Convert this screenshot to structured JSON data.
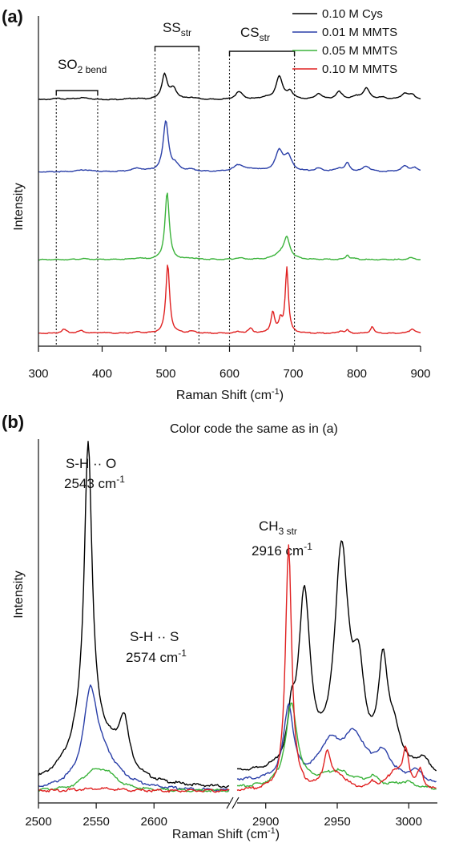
{
  "chart_data": [
    {
      "panel_label": "(a)",
      "type": "line",
      "xlabel": "Raman Shift (cm",
      "xlabel_sup": "-1",
      "xlabel_close": ")",
      "ylabel": "Intensity",
      "xlim": [
        300,
        900
      ],
      "xticks": [
        300,
        400,
        500,
        600,
        700,
        800,
        900
      ],
      "legend": "top-right",
      "grid": false,
      "annotations": [
        {
          "text": "SO",
          "sub": "2 bend",
          "x_range": [
            328,
            393
          ]
        },
        {
          "text": "SS",
          "sub": "str",
          "x_range": [
            483,
            552
          ]
        },
        {
          "text": "CS",
          "sub": "str",
          "x_range": [
            600,
            702
          ]
        }
      ],
      "series": [
        {
          "name": "0.10 M Cys",
          "color": "#000000",
          "offset": 3,
          "baseline": 0.07,
          "peaks": [
            [
              330,
              0.03,
              12
            ],
            [
              370,
              0.05,
              14
            ],
            [
              450,
              0.03,
              12
            ],
            [
              498,
              0.65,
              5
            ],
            [
              512,
              0.28,
              6
            ],
            [
              541,
              0.05,
              8
            ],
            [
              615,
              0.2,
              7
            ],
            [
              655,
              0.05,
              8
            ],
            [
              678,
              0.6,
              6
            ],
            [
              695,
              0.2,
              6
            ],
            [
              740,
              0.15,
              6
            ],
            [
              772,
              0.2,
              6
            ],
            [
              800,
              0.07,
              8
            ],
            [
              815,
              0.28,
              6
            ],
            [
              840,
              0.05,
              8
            ],
            [
              875,
              0.16,
              6
            ],
            [
              887,
              0.12,
              6
            ]
          ]
        },
        {
          "name": "0.01 M MMTS",
          "color": "#2a3fa8",
          "offset": 2,
          "baseline": 0.07,
          "peaks": [
            [
              372,
              0.05,
              14
            ],
            [
              455,
              0.08,
              12
            ],
            [
              500,
              1.3,
              5
            ],
            [
              515,
              0.15,
              7
            ],
            [
              540,
              0.05,
              8
            ],
            [
              615,
              0.18,
              10
            ],
            [
              640,
              0.05,
              10
            ],
            [
              678,
              0.52,
              7
            ],
            [
              692,
              0.38,
              7
            ],
            [
              740,
              0.08,
              7
            ],
            [
              772,
              0.08,
              7
            ],
            [
              785,
              0.22,
              4
            ],
            [
              815,
              0.14,
              7
            ],
            [
              875,
              0.14,
              7
            ],
            [
              890,
              0.1,
              6
            ]
          ]
        },
        {
          "name": "0.05 M MMTS",
          "color": "#3bb33b",
          "offset": 1,
          "baseline": 0.04,
          "peaks": [
            [
              370,
              0.02,
              12
            ],
            [
              455,
              0.03,
              10
            ],
            [
              502,
              1.75,
              4
            ],
            [
              541,
              0.03,
              8
            ],
            [
              615,
              0.04,
              8
            ],
            [
              678,
              0.12,
              10
            ],
            [
              690,
              0.55,
              6
            ],
            [
              785,
              0.12,
              3
            ],
            [
              795,
              0.03,
              5
            ],
            [
              885,
              0.05,
              6
            ]
          ]
        },
        {
          "name": "0.10 M MMTS",
          "color": "#e02020",
          "offset": 0,
          "baseline": 0.04,
          "peaks": [
            [
              340,
              0.1,
              5
            ],
            [
              367,
              0.07,
              6
            ],
            [
              400,
              0.02,
              8
            ],
            [
              455,
              0.03,
              8
            ],
            [
              503,
              1.8,
              3.5
            ],
            [
              541,
              0.05,
              6
            ],
            [
              615,
              0.04,
              6
            ],
            [
              633,
              0.12,
              4
            ],
            [
              668,
              0.55,
              3.5
            ],
            [
              680,
              0.3,
              3
            ],
            [
              690,
              1.7,
              3
            ],
            [
              775,
              0.06,
              4
            ],
            [
              785,
              0.08,
              3
            ],
            [
              824,
              0.18,
              3
            ],
            [
              887,
              0.12,
              5
            ]
          ]
        }
      ]
    },
    {
      "panel_label": "(b)",
      "type": "line",
      "xlabel": "Raman Shift (cm",
      "xlabel_sup": "-1",
      "xlabel_close": ")",
      "ylabel": "Intensity",
      "note": "Color code the same as in (a)",
      "axis_break": [
        2665,
        2880
      ],
      "xlim_segments": [
        [
          2500,
          2665
        ],
        [
          2880,
          3020
        ]
      ],
      "xticks": [
        2500,
        2550,
        2600,
        2900,
        2950,
        3000
      ],
      "annotations": [
        {
          "line1": "S-H ·· O",
          "line2": "2543 cm",
          "sup": "-1",
          "x": 2543
        },
        {
          "line1": "S-H ·· S",
          "line2": "2574 cm",
          "sup": "-1",
          "x": 2574
        },
        {
          "line1": "CH",
          "line1_sub": "3 str",
          "line2": "2916 cm",
          "sup": "-1",
          "x": 2916
        }
      ],
      "series": [
        {
          "name": "0.10 M Cys",
          "color": "#000000",
          "baseline": 0.02,
          "seg1_peaks": [
            [
              2543,
              2.4,
              4
            ],
            [
              2543,
              0.45,
              20
            ],
            [
              2574,
              0.38,
              5
            ],
            [
              2565,
              0.12,
              15
            ]
          ],
          "seg2_start": 0.14,
          "seg2_slope": 0.0,
          "seg2_peaks": [
            [
              2918,
              0.32,
              3
            ],
            [
              2927,
              1.45,
              5
            ],
            [
              2953,
              1.8,
              6
            ],
            [
              2965,
              0.7,
              5
            ],
            [
              2982,
              0.85,
              4
            ],
            [
              2990,
              0.3,
              6
            ],
            [
              3010,
              0.15,
              8
            ]
          ]
        },
        {
          "name": "0.01 M MMTS",
          "color": "#2a3fa8",
          "baseline": 0.0,
          "seg1_peaks": [
            [
              2545,
              0.68,
              7
            ],
            [
              2555,
              0.25,
              18
            ]
          ],
          "seg2_start": 0.08,
          "seg2_slope": 0.0,
          "seg2_peaks": [
            [
              2916,
              0.62,
              4
            ],
            [
              2945,
              0.3,
              10
            ],
            [
              2962,
              0.35,
              9
            ],
            [
              2982,
              0.22,
              8
            ],
            [
              3005,
              0.1,
              6
            ]
          ]
        },
        {
          "name": "0.05 M MMTS",
          "color": "#3bb33b",
          "baseline": 0.0,
          "seg1_peaks": [
            [
              2545,
              0.1,
              10
            ],
            [
              2558,
              0.14,
              12
            ]
          ],
          "seg2_start": 0.02,
          "seg2_slope": 0.0,
          "seg2_peaks": [
            [
              2918,
              0.68,
              5
            ],
            [
              2950,
              0.14,
              15
            ],
            [
              2975,
              0.07,
              5
            ],
            [
              2998,
              0.05,
              8
            ]
          ]
        },
        {
          "name": "0.10 M MMTS",
          "color": "#e02020",
          "baseline": 0.0,
          "seg1_peaks": [
            [
              2550,
              0.02,
              20
            ]
          ],
          "seg2_start": 0.0,
          "seg2_slope": 0.0,
          "seg2_peaks": [
            [
              2916,
              2.05,
              2.6
            ],
            [
              2943,
              0.3,
              3
            ],
            [
              2952,
              0.1,
              6
            ],
            [
              2975,
              0.05,
              3
            ],
            [
              2990,
              0.15,
              6
            ],
            [
              2998,
              0.3,
              2.5
            ],
            [
              3008,
              0.15,
              2.5
            ]
          ]
        }
      ]
    }
  ]
}
